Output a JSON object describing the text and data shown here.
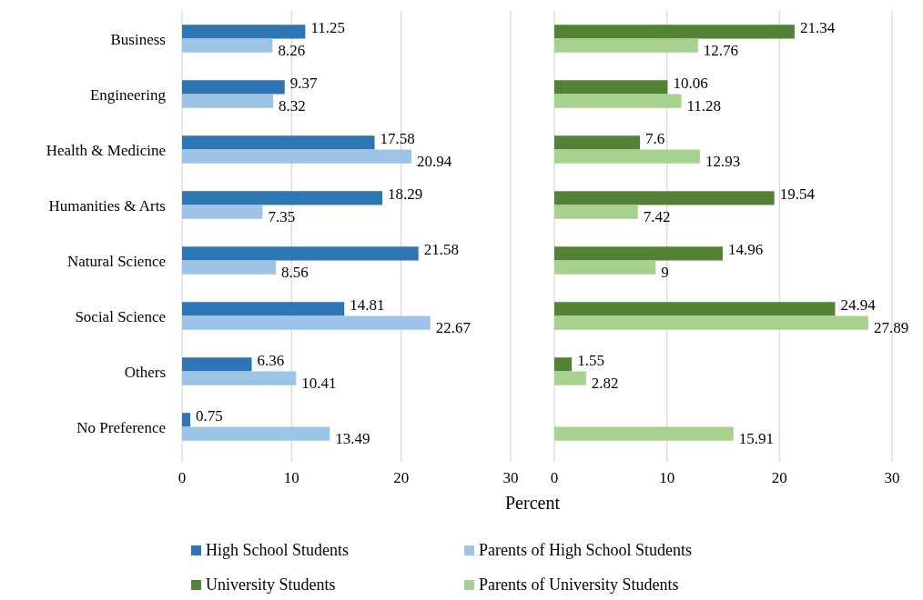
{
  "chart_data": [
    {
      "type": "bar",
      "orientation": "horizontal",
      "categories": [
        "Business",
        "Engineering",
        "Health & Medicine",
        "Humanities & Arts",
        "Natural Science",
        "Social Science",
        "Others",
        "No Preference"
      ],
      "series": [
        {
          "name": "High School Students",
          "color": "#2e75b6",
          "values": [
            11.25,
            9.37,
            17.58,
            18.29,
            21.58,
            14.81,
            6.36,
            0.75
          ]
        },
        {
          "name": "Parents of High School Students",
          "color": "#9dc3e6",
          "values": [
            8.26,
            8.32,
            20.94,
            7.35,
            8.56,
            22.67,
            10.41,
            13.49
          ]
        }
      ],
      "xlim": [
        0,
        30
      ],
      "xticks": [
        0,
        10,
        20,
        30
      ],
      "xlabel": "Percent",
      "grid": "x",
      "data_labels": true,
      "legend": "bottom"
    },
    {
      "type": "bar",
      "orientation": "horizontal",
      "categories": [
        null,
        null,
        null,
        null,
        null,
        null,
        null,
        null
      ],
      "series": [
        {
          "name": "University Students",
          "color": "#548235",
          "values": [
            21.34,
            10.06,
            7.6,
            19.54,
            14.96,
            24.94,
            1.55,
            null
          ]
        },
        {
          "name": "Parents of University Students",
          "color": "#a9d18e",
          "values": [
            12.76,
            11.28,
            12.93,
            7.42,
            9,
            27.89,
            2.82,
            15.91
          ]
        }
      ],
      "xlim": [
        0,
        30
      ],
      "xticks": [
        0,
        10,
        20,
        30
      ],
      "grid": "x",
      "data_labels": true,
      "legend": "bottom",
      "tick_labels": "x"
    }
  ]
}
